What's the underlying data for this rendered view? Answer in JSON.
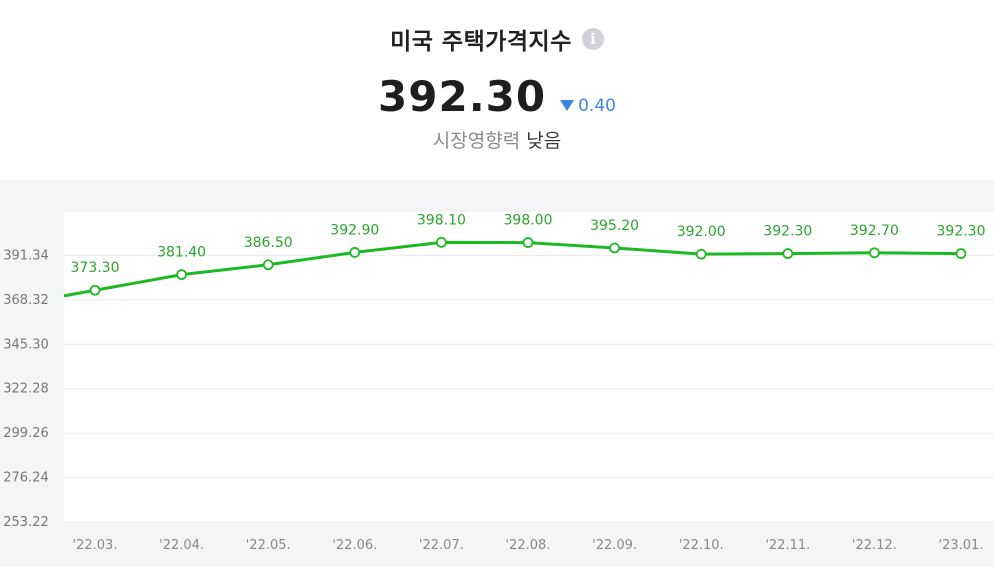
{
  "header": {
    "title": "미국 주택가격지수",
    "info_icon": "info-icon",
    "value": "392.30",
    "change": "0.40",
    "change_direction": "down",
    "impact_label": "시장영향력",
    "impact_value": "낮음"
  },
  "colors": {
    "line": "#1db924",
    "label": "#2aa52c",
    "change": "#3a86e8",
    "chart_bg": "#f4f5f7",
    "plot_bg": "#ffffff"
  },
  "chart_data": {
    "type": "line",
    "categories": [
      "'22.03.",
      "'22.04.",
      "'22.05.",
      "'22.06.",
      "'22.07.",
      "'22.08.",
      "'22.09.",
      "'22.10.",
      "'22.11.",
      "'22.12.",
      "'23.01."
    ],
    "values": [
      373.3,
      381.4,
      386.5,
      392.9,
      398.1,
      398.0,
      395.2,
      392.0,
      392.3,
      392.7,
      392.3
    ],
    "value_labels": [
      "373.30",
      "381.40",
      "386.50",
      "392.90",
      "398.10",
      "398.00",
      "395.20",
      "392.00",
      "392.30",
      "392.70",
      "392.30"
    ],
    "y_ticks": [
      "391.34",
      "368.32",
      "345.30",
      "322.28",
      "299.26",
      "276.24",
      "253.22"
    ],
    "y_tick_values": [
      391.34,
      368.32,
      345.3,
      322.28,
      299.26,
      276.24,
      253.22
    ],
    "ylim": [
      253.22,
      414.36
    ],
    "grid": true,
    "xlabel": "",
    "ylabel": ""
  }
}
